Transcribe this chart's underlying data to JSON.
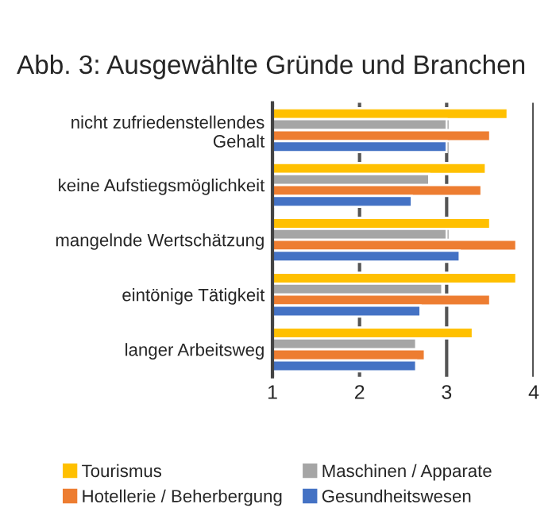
{
  "chart_data": {
    "type": "bar",
    "orientation": "horizontal",
    "title": "Abb. 3: Ausgewählte Gründe und Branchen",
    "categories": [
      "nicht zufriedenstellendes\nGehalt",
      "keine Aufstiegsmöglichkeit",
      "mangelnde Wertschätzung",
      "eintönige Tätigkeit",
      "langer Arbeitsweg"
    ],
    "series": [
      {
        "name": "Tourismus",
        "color": "#ffc000",
        "values": [
          3.7,
          3.45,
          3.5,
          3.8,
          3.3
        ]
      },
      {
        "name": "Maschinen / Apparate",
        "color": "#a5a5a5",
        "values": [
          3.0,
          2.8,
          3.0,
          2.95,
          2.65
        ]
      },
      {
        "name": "Hotellerie / Beherbergung",
        "color": "#ed7d31",
        "values": [
          3.5,
          3.4,
          3.8,
          3.5,
          2.75
        ]
      },
      {
        "name": "Gesundheitswesen",
        "color": "#4472c4",
        "values": [
          3.0,
          2.6,
          3.15,
          2.7,
          2.65
        ]
      }
    ],
    "xlim": [
      1,
      4
    ],
    "xticks": [
      1,
      2,
      3,
      4
    ],
    "grid": "x",
    "legend": "bottom"
  }
}
